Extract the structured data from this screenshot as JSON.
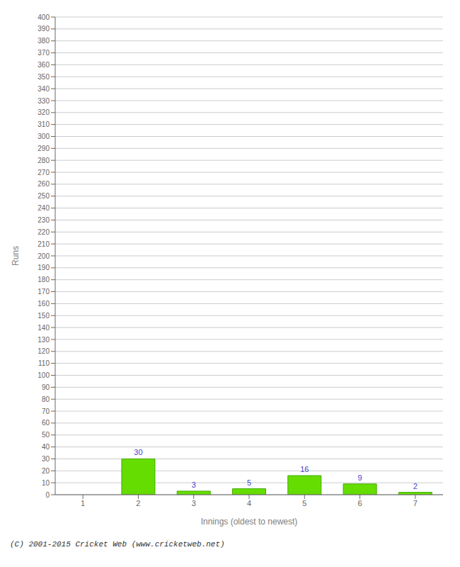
{
  "chart_data": {
    "type": "bar",
    "categories": [
      "1",
      "2",
      "3",
      "4",
      "5",
      "6",
      "7"
    ],
    "values": [
      0,
      30,
      3,
      5,
      16,
      9,
      2
    ],
    "color": "#66dd00",
    "xlabel": "Innings (oldest to newest)",
    "ylabel": "Runs",
    "ylim": [
      0,
      400
    ],
    "yticks": [
      0,
      10,
      20,
      30,
      40,
      50,
      60,
      70,
      80,
      90,
      100,
      110,
      120,
      130,
      140,
      150,
      160,
      170,
      180,
      190,
      200,
      210,
      220,
      230,
      240,
      250,
      260,
      270,
      280,
      290,
      300,
      310,
      320,
      330,
      340,
      350,
      360,
      370,
      380,
      390,
      400
    ],
    "grid": true,
    "data_labels": true,
    "annotations": [
      "(C) 2001-2015 Cricket Web (www.cricketweb.net)"
    ]
  }
}
